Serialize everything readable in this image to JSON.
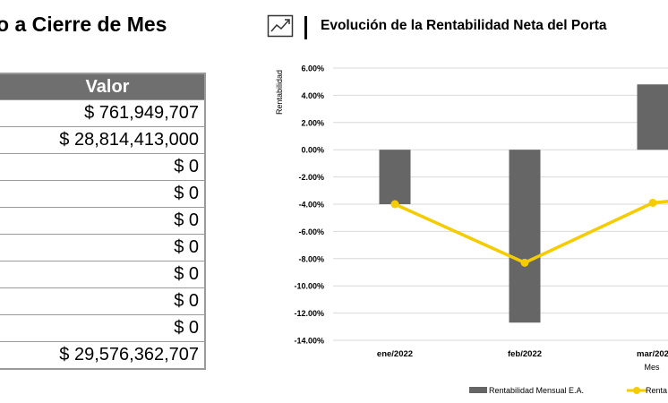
{
  "left_panel": {
    "title": "o a Cierre de Mes",
    "table_header": "Valor",
    "rows": [
      "$ 761,949,707",
      "$ 28,814,413,000",
      "$ 0",
      "$ 0",
      "$ 0",
      "$ 0",
      "$ 0",
      "$ 0",
      "$ 0",
      "$ 29,576,362,707"
    ]
  },
  "chart_header": {
    "icon": "trend-chart-icon",
    "title": "Evolución de la Rentabilidad Neta del Porta"
  },
  "chart_data": {
    "type": "bar",
    "categories": [
      "ene/2022",
      "feb/2022",
      "mar/202"
    ],
    "series": [
      {
        "name": "Rentabilidad Mensual E.A.",
        "type": "bar",
        "color": "#666666",
        "values": [
          -4.0,
          -12.7,
          4.8
        ]
      },
      {
        "name": "Renta",
        "type": "line",
        "color": "#F5CC00",
        "values": [
          -4.0,
          -8.3,
          -3.9
        ]
      }
    ],
    "ylabel": "Rentabilidad",
    "xlabel": "Mes",
    "ylim": [
      -14.0,
      6.0
    ],
    "yticks": [
      "6.00%",
      "4.00%",
      "2.00%",
      "0.00%",
      "-2.00%",
      "-4.00%",
      "-6.00%",
      "-8.00%",
      "-10.00%",
      "-12.00%",
      "-14.00%"
    ],
    "grid": true,
    "legend_position": "bottom"
  }
}
